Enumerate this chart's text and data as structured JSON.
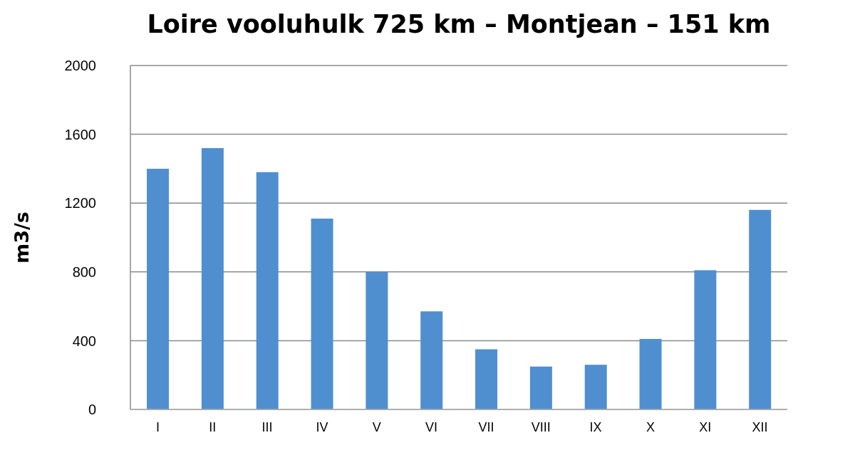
{
  "chart_data": {
    "type": "bar",
    "title": "Loire vooluhulk 725 km – Montjean – 151 km",
    "ylabel": "m3/s",
    "categories": [
      "I",
      "II",
      "III",
      "IV",
      "V",
      "VI",
      "VII",
      "VIII",
      "IX",
      "X",
      "XI",
      "XII"
    ],
    "values": [
      1400,
      1520,
      1380,
      1110,
      800,
      570,
      350,
      250,
      260,
      410,
      810,
      1160
    ],
    "color": "#4f8fd0",
    "ylim": [
      0,
      2000
    ],
    "yticks": [
      0,
      400,
      800,
      1200,
      1600,
      2000
    ],
    "grid": "y"
  }
}
